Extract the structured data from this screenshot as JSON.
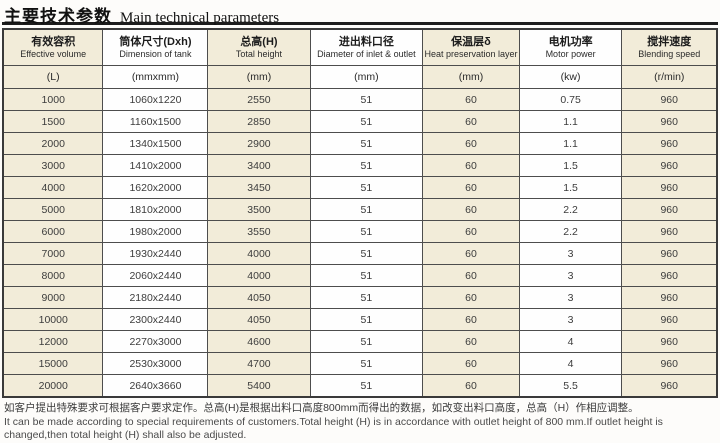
{
  "title": {
    "zh": "主要技术参数",
    "en": "Main technical parameters"
  },
  "table": {
    "columns": [
      {
        "key": "effective-volume",
        "zh": "有效容积",
        "en": "Effective volume",
        "unit": "(L)"
      },
      {
        "key": "tank-dimension",
        "zh": "筒体尺寸(Dxh)",
        "en": "Dimension of tank",
        "unit": "(mmxmm)"
      },
      {
        "key": "total-height",
        "zh": "总高(H)",
        "en": "Total height",
        "unit": "(mm)"
      },
      {
        "key": "inlet-outlet-diameter",
        "zh": "进出料口径",
        "en": "Diameter of inlet & outlet",
        "unit": "(mm)"
      },
      {
        "key": "heat-preservation-layer",
        "zh": "保温层δ",
        "en": "Heat preservation layer",
        "unit": "(mm)"
      },
      {
        "key": "motor-power",
        "zh": "电机功率",
        "en": "Motor power",
        "unit": "(kw)"
      },
      {
        "key": "blending-speed",
        "zh": "搅拌速度",
        "en": "Blending speed",
        "unit": "(r/min)"
      }
    ],
    "rows": [
      [
        "1000",
        "1060x1220",
        "2550",
        "51",
        "60",
        "0.75",
        "960"
      ],
      [
        "1500",
        "1160x1500",
        "2850",
        "51",
        "60",
        "1.1",
        "960"
      ],
      [
        "2000",
        "1340x1500",
        "2900",
        "51",
        "60",
        "1.1",
        "960"
      ],
      [
        "3000",
        "1410x2000",
        "3400",
        "51",
        "60",
        "1.5",
        "960"
      ],
      [
        "4000",
        "1620x2000",
        "3450",
        "51",
        "60",
        "1.5",
        "960"
      ],
      [
        "5000",
        "1810x2000",
        "3500",
        "51",
        "60",
        "2.2",
        "960"
      ],
      [
        "6000",
        "1980x2000",
        "3550",
        "51",
        "60",
        "2.2",
        "960"
      ],
      [
        "7000",
        "1930x2440",
        "4000",
        "51",
        "60",
        "3",
        "960"
      ],
      [
        "8000",
        "2060x2440",
        "4000",
        "51",
        "60",
        "3",
        "960"
      ],
      [
        "9000",
        "2180x2440",
        "4050",
        "51",
        "60",
        "3",
        "960"
      ],
      [
        "10000",
        "2300x2440",
        "4050",
        "51",
        "60",
        "3",
        "960"
      ],
      [
        "12000",
        "2270x3000",
        "4600",
        "51",
        "60",
        "4",
        "960"
      ],
      [
        "15000",
        "2530x3000",
        "4700",
        "51",
        "60",
        "4",
        "960"
      ],
      [
        "20000",
        "2640x3660",
        "5400",
        "51",
        "60",
        "5.5",
        "960"
      ]
    ]
  },
  "notes": {
    "zh": "如客户提出特殊要求可根据客户要求定作。总高(H)是根据出料口高度800mm而得出的数据，如改变出料口高度，总高（H）作相应调整。",
    "en": "It can be made according to special requirements of customers.Total height (H) is in accordance with outlet height of 800 mm.If outlet height is changed,then total height (H) shall also be adjusted."
  },
  "colors": {
    "stripe_beige": "#f2ecd9",
    "cell_border": "#4d4d4d",
    "title_rule": "#1d1d1d"
  }
}
